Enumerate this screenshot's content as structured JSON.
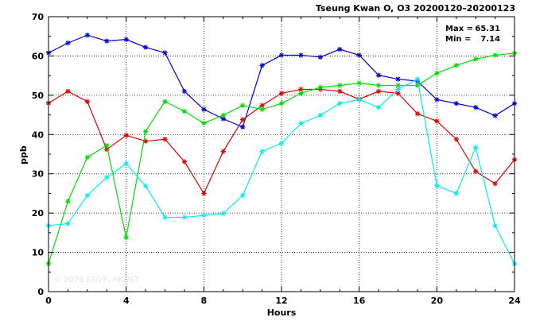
{
  "chart_data": {
    "type": "line",
    "title": "Tseung Kwan O, O3 20200120–20200123",
    "xlabel": "Hours",
    "ylabel": "ppb",
    "xlim": [
      0,
      24
    ],
    "ylim": [
      0,
      70
    ],
    "x_ticks": [
      0,
      4,
      8,
      12,
      16,
      20,
      24
    ],
    "y_ticks": [
      0,
      10,
      20,
      30,
      40,
      50,
      60,
      70
    ],
    "grid": true,
    "stats": {
      "max_label": "Max =",
      "max_value": "65.31",
      "min_label": "Min =",
      "min_value": "7.14"
    },
    "watermark": "© 2026  ENVF, HKUST",
    "x": [
      0,
      1,
      2,
      3,
      4,
      5,
      6,
      7,
      8,
      9,
      10,
      11,
      12,
      13,
      14,
      15,
      16,
      17,
      18,
      19,
      20,
      21,
      22,
      23,
      24
    ],
    "series": [
      {
        "color": "#0000cc",
        "values": [
          60.8,
          63.3,
          65.3,
          63.8,
          64.2,
          62.2,
          60.8,
          51.0,
          46.4,
          44.0,
          41.9,
          57.6,
          60.2,
          60.2,
          59.7,
          61.7,
          60.2,
          55.1,
          54.1,
          53.6,
          48.9,
          47.9,
          46.9,
          44.8,
          47.9
        ]
      },
      {
        "color": "#dd0000",
        "values": [
          48.0,
          51.0,
          48.4,
          36.2,
          39.8,
          38.3,
          38.8,
          33.1,
          25.0,
          35.7,
          43.8,
          47.4,
          50.5,
          51.5,
          51.5,
          51.0,
          49.0,
          51.0,
          50.5,
          45.3,
          43.4,
          38.8,
          30.6,
          27.5,
          33.6
        ]
      },
      {
        "color": "#00dd00",
        "values": [
          7.1,
          23.0,
          34.2,
          37.2,
          13.8,
          40.8,
          48.4,
          45.9,
          42.9,
          44.9,
          47.4,
          46.4,
          47.9,
          50.5,
          52.0,
          52.5,
          53.1,
          52.5,
          52.5,
          52.5,
          55.6,
          57.6,
          59.2,
          60.2,
          60.7
        ]
      },
      {
        "color": "#00eeee",
        "values": [
          16.8,
          17.3,
          24.5,
          29.1,
          32.6,
          26.9,
          18.9,
          18.9,
          19.4,
          19.9,
          24.5,
          35.7,
          37.8,
          42.8,
          44.9,
          47.9,
          48.9,
          46.9,
          51.5,
          54.1,
          27.0,
          25.0,
          36.7,
          16.8,
          7.1
        ]
      }
    ]
  }
}
